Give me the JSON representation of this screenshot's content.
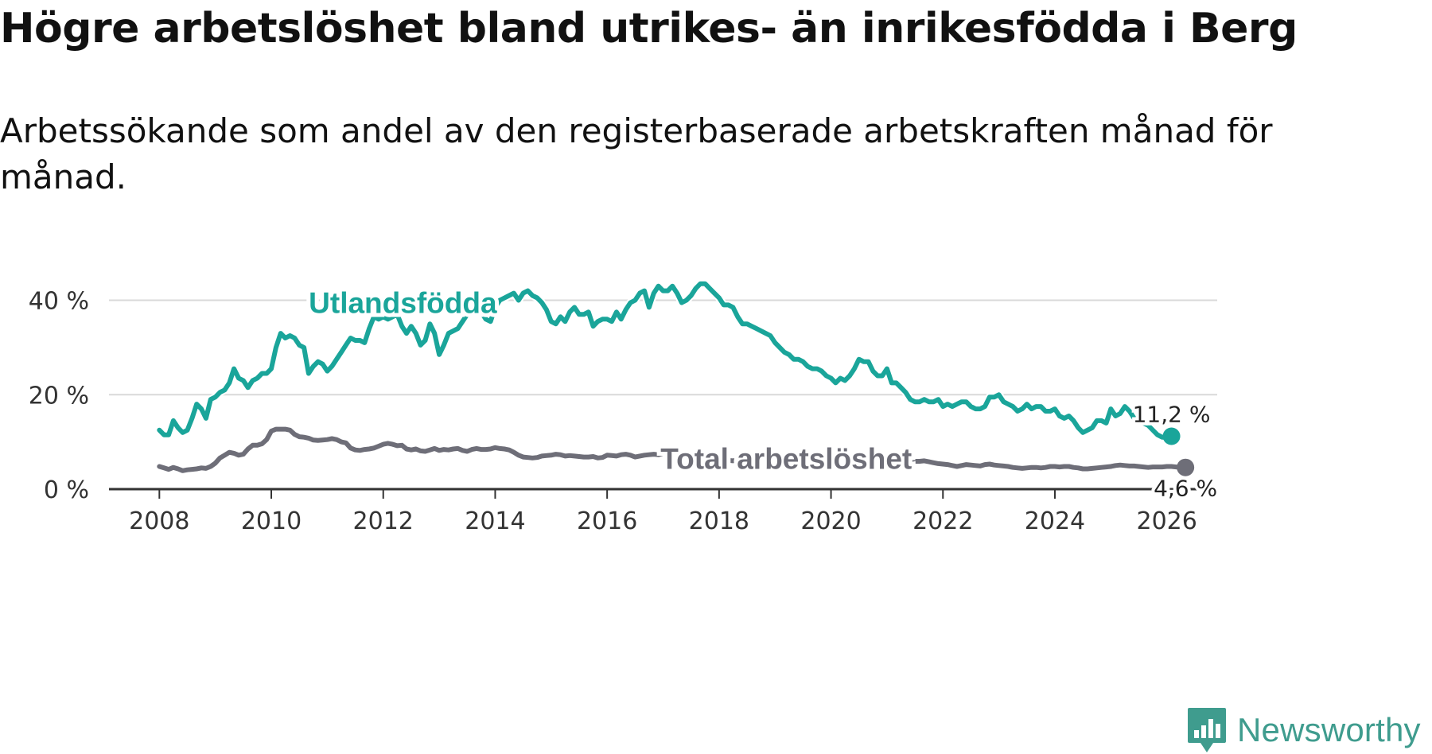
{
  "title": "Högre arbetslöshet bland utrikes- än inrikesfödda i Berg",
  "subtitle": "Arbetssökande som andel av den registerbaserade arbetskraften månad för månad.",
  "brand": {
    "name": "Newsworthy",
    "color": "#3f9c8e"
  },
  "chart_data": {
    "type": "line",
    "title": "Högre arbetslöshet bland utrikes- än inrikesfödda i Berg",
    "subtitle": "Arbetssökande som andel av den registerbaserade arbetskraften månad för månad.",
    "xlabel": "",
    "ylabel": "",
    "ylim": [
      0,
      48
    ],
    "xlim": [
      2007.1,
      2026.9
    ],
    "x_ticks": [
      2008,
      2010,
      2012,
      2014,
      2016,
      2018,
      2020,
      2022,
      2024,
      2026
    ],
    "y_ticks": [
      0,
      20,
      40
    ],
    "y_tick_labels": [
      "0 %",
      "20 %",
      "40 %"
    ],
    "grid": true,
    "legend": "inline labels",
    "x_start": 2008.0,
    "x_step": 0.083333,
    "series": [
      {
        "name": "Utlandsfödda",
        "color": "#1aa59a",
        "label_year": 2012.35,
        "label_value": 39.3,
        "end_label": "11,2 %",
        "values": [
          12.5,
          11.5,
          11.5,
          14.5,
          13.0,
          12.0,
          12.5,
          15.0,
          18.0,
          17.0,
          15.0,
          19.0,
          19.5,
          20.5,
          21.0,
          22.5,
          25.5,
          23.5,
          23.0,
          21.5,
          23.0,
          23.5,
          24.5,
          24.5,
          25.5,
          30.0,
          33.0,
          32.0,
          32.5,
          32.0,
          30.5,
          30.0,
          24.5,
          26.0,
          27.0,
          26.5,
          25.0,
          26.0,
          27.5,
          29.0,
          30.5,
          32.0,
          31.5,
          31.5,
          31.0,
          34.0,
          36.5,
          36.0,
          36.5,
          36.0,
          36.5,
          37.0,
          34.5,
          33.0,
          34.5,
          33.0,
          30.5,
          31.5,
          35.0,
          33.0,
          28.5,
          30.5,
          33.0,
          33.5,
          34.0,
          35.5,
          37.0,
          38.0,
          37.5,
          37.5,
          36.0,
          35.5,
          38.5,
          40.0,
          40.5,
          41.0,
          41.5,
          40.0,
          41.5,
          42.0,
          41.0,
          40.5,
          39.5,
          38.0,
          35.5,
          35.0,
          36.5,
          35.5,
          37.5,
          38.5,
          37.0,
          37.0,
          37.5,
          34.5,
          35.5,
          36.0,
          36.0,
          35.5,
          37.5,
          36.0,
          38.0,
          39.5,
          40.0,
          41.5,
          42.0,
          38.5,
          41.5,
          43.0,
          42.0,
          42.0,
          43.0,
          41.5,
          39.5,
          40.0,
          41.0,
          42.5,
          43.5,
          43.5,
          42.5,
          41.5,
          40.5,
          39.0,
          39.0,
          38.5,
          36.5,
          35.0,
          35.0,
          34.5,
          34.0,
          33.5,
          33.0,
          32.5,
          31.0,
          30.0,
          29.0,
          28.5,
          27.5,
          27.5,
          27.0,
          26.0,
          25.5,
          25.5,
          25.0,
          24.0,
          23.5,
          22.5,
          23.5,
          23.0,
          24.0,
          25.5,
          27.5,
          27.0,
          27.0,
          25.0,
          24.0,
          24.0,
          25.5,
          22.5,
          22.5,
          21.5,
          20.5,
          19.0,
          18.5,
          18.5,
          19.0,
          18.5,
          18.5,
          19.0,
          17.5,
          18.0,
          17.5,
          18.0,
          18.5,
          18.5,
          17.5,
          17.0,
          17.0,
          17.5,
          19.5,
          19.5,
          20.0,
          18.5,
          18.0,
          17.5,
          16.5,
          17.0,
          18.0,
          17.0,
          17.5,
          17.5,
          16.5,
          16.5,
          17.0,
          15.5,
          15.0,
          15.5,
          14.5,
          13.0,
          12.0,
          12.5,
          13.0,
          14.5,
          14.5,
          14.0,
          17.0,
          15.5,
          16.0,
          17.5,
          16.5,
          15.0,
          15.0,
          14.0,
          13.5,
          12.5,
          11.5,
          11.0,
          11.0,
          11.2
        ]
      },
      {
        "name": "Total arbetslöshet",
        "color": "#6e6e78",
        "label_year": 2019.2,
        "label_value": 6.3,
        "end_label": "4,6 %",
        "values": [
          4.8,
          4.5,
          4.2,
          4.6,
          4.3,
          3.9,
          4.1,
          4.2,
          4.3,
          4.5,
          4.4,
          4.8,
          5.5,
          6.6,
          7.2,
          7.8,
          7.6,
          7.2,
          7.4,
          8.5,
          9.3,
          9.3,
          9.6,
          10.5,
          12.3,
          12.7,
          12.7,
          12.7,
          12.5,
          11.6,
          11.1,
          11.0,
          10.8,
          10.4,
          10.3,
          10.4,
          10.5,
          10.7,
          10.5,
          10.0,
          9.8,
          8.7,
          8.3,
          8.2,
          8.4,
          8.5,
          8.7,
          9.1,
          9.5,
          9.7,
          9.5,
          9.2,
          9.3,
          8.5,
          8.3,
          8.5,
          8.1,
          8.0,
          8.3,
          8.6,
          8.2,
          8.4,
          8.3,
          8.5,
          8.6,
          8.2,
          8.0,
          8.4,
          8.6,
          8.4,
          8.4,
          8.5,
          8.8,
          8.6,
          8.5,
          8.3,
          7.8,
          7.2,
          6.8,
          6.7,
          6.6,
          6.7,
          7.0,
          7.1,
          7.2,
          7.4,
          7.3,
          7.0,
          7.1,
          7.0,
          6.9,
          6.8,
          6.8,
          6.9,
          6.6,
          6.7,
          7.2,
          7.1,
          7.0,
          7.3,
          7.4,
          7.2,
          6.8,
          7.0,
          7.2,
          7.3,
          7.4,
          7.3,
          7.6,
          7.8,
          7.7,
          7.7,
          7.6,
          7.0,
          6.9,
          6.8,
          6.8,
          6.6,
          6.4,
          6.3,
          6.2,
          6.3,
          6.1,
          6.0,
          6.2,
          6.3,
          6.4,
          6.2,
          6.0,
          6.1,
          6.3,
          6.5,
          6.4,
          6.3,
          6.1,
          6.0,
          6.2,
          6.4,
          6.5,
          6.6,
          6.5,
          6.3,
          6.2,
          6.4,
          6.6,
          6.8,
          6.9,
          7.0,
          6.8,
          6.6,
          6.7,
          6.9,
          7.0,
          6.8,
          6.5,
          6.3,
          6.2,
          6.0,
          5.9,
          5.8,
          5.7,
          5.8,
          5.9,
          5.9,
          6.0,
          5.8,
          5.6,
          5.4,
          5.3,
          5.2,
          5.0,
          4.8,
          5.0,
          5.2,
          5.1,
          5.0,
          4.9,
          5.2,
          5.3,
          5.1,
          5.0,
          4.9,
          4.8,
          4.6,
          4.5,
          4.4,
          4.5,
          4.6,
          4.6,
          4.5,
          4.6,
          4.8,
          4.8,
          4.7,
          4.8,
          4.8,
          4.6,
          4.5,
          4.3,
          4.3,
          4.4,
          4.5,
          4.6,
          4.7,
          4.8,
          5.0,
          5.1,
          5.0,
          4.9,
          4.9,
          4.8,
          4.7,
          4.6,
          4.7,
          4.7,
          4.7,
          4.8,
          4.8,
          4.7,
          4.6,
          4.6
        ]
      }
    ]
  }
}
